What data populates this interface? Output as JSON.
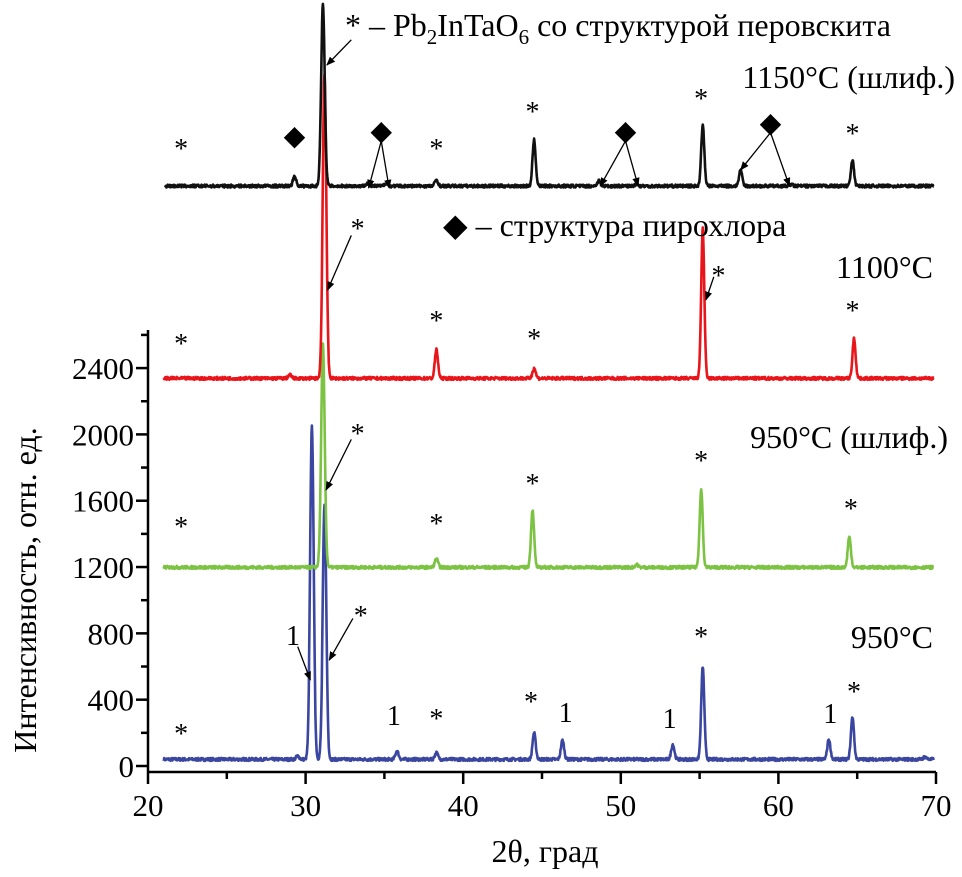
{
  "chart_data": {
    "type": "line",
    "xlabel": "2θ, град",
    "ylabel": "Интенсивность, отн. ед.",
    "xlim": [
      20,
      70
    ],
    "ylim": [
      0,
      2600
    ],
    "xticks": [
      20,
      30,
      40,
      50,
      60,
      70
    ],
    "yticks": [
      0,
      400,
      800,
      1200,
      1600,
      2000,
      2400
    ],
    "grid": false,
    "legend_entries": [
      {
        "symbol": "*",
        "prefix": " – Pb",
        "sub1": "2",
        "mid": "InTaO",
        "sub2": "6",
        "suffix": " со структурой перовскита"
      },
      {
        "symbol": "◆",
        "text": " – структура пирохлора"
      }
    ],
    "series": [
      {
        "name": "950°C",
        "color": "#3a46a0",
        "baseline": 40,
        "peaks": [
          [
            29.5,
            60
          ],
          [
            30.4,
            2045
          ],
          [
            31.2,
            1570
          ],
          [
            35.8,
            90
          ],
          [
            38.3,
            80
          ],
          [
            44.5,
            200
          ],
          [
            46.3,
            155
          ],
          [
            53.3,
            130
          ],
          [
            55.2,
            600
          ],
          [
            63.2,
            160
          ],
          [
            64.7,
            295
          ],
          [
            69.3,
            55
          ]
        ]
      },
      {
        "name": "950°C (шлиф.)",
        "color": "#7cc243",
        "baseline": 1198,
        "peaks": [
          [
            31.1,
            2540
          ],
          [
            38.3,
            1250
          ],
          [
            44.4,
            1545
          ],
          [
            51.0,
            1215
          ],
          [
            55.1,
            1665
          ],
          [
            64.5,
            1380
          ]
        ]
      },
      {
        "name": "1100°C",
        "color": "#e8151b",
        "baseline": 2338,
        "peaks": [
          [
            29.0,
            2360
          ],
          [
            31.2,
            4170
          ],
          [
            38.3,
            2510
          ],
          [
            44.5,
            2400
          ],
          [
            55.2,
            3245
          ],
          [
            64.8,
            2580
          ]
        ]
      },
      {
        "name": "1150°C (шлиф.)",
        "color": "#111111",
        "baseline": 3498,
        "peaks": [
          [
            29.3,
            3560
          ],
          [
            31.1,
            4590
          ],
          [
            33.9,
            3515
          ],
          [
            35.1,
            3515
          ],
          [
            38.3,
            3535
          ],
          [
            44.5,
            3775
          ],
          [
            48.6,
            3530
          ],
          [
            51.0,
            3512
          ],
          [
            55.2,
            3865
          ],
          [
            57.6,
            3595
          ],
          [
            60.8,
            3508
          ],
          [
            64.7,
            3650
          ]
        ]
      }
    ],
    "annotations": [
      {
        "t": "*",
        "x": 22.1,
        "y": 3776
      },
      {
        "t": "◆",
        "x": 29.3,
        "y": 3806
      },
      {
        "t": "◆",
        "x": 34.8,
        "y": 3836
      },
      {
        "t": "*",
        "x": 38.3,
        "y": 3776
      },
      {
        "t": "*",
        "x": 44.4,
        "y": 3999
      },
      {
        "t": "◆",
        "x": 50.3,
        "y": 3836
      },
      {
        "t": "*",
        "x": 55.1,
        "y": 4077
      },
      {
        "t": "◆",
        "x": 59.5,
        "y": 3884
      },
      {
        "t": "*",
        "x": 64.7,
        "y": 3866
      },
      {
        "t": "*",
        "x": 22.1,
        "y": 2600
      },
      {
        "t": "*",
        "x": 33.3,
        "y": 3293
      },
      {
        "t": "*",
        "x": 38.3,
        "y": 2738
      },
      {
        "t": "*",
        "x": 44.5,
        "y": 2630
      },
      {
        "t": "*",
        "x": 56.2,
        "y": 3010
      },
      {
        "t": "*",
        "x": 64.7,
        "y": 2799
      },
      {
        "t": "*",
        "x": 22.1,
        "y": 1496
      },
      {
        "t": "*",
        "x": 33.3,
        "y": 2057
      },
      {
        "t": "*",
        "x": 38.3,
        "y": 1514
      },
      {
        "t": "*",
        "x": 44.4,
        "y": 1755
      },
      {
        "t": "*",
        "x": 55.1,
        "y": 1894
      },
      {
        "t": "*",
        "x": 64.6,
        "y": 1604
      },
      {
        "t": "*",
        "x": 22.1,
        "y": 247
      },
      {
        "t": "1",
        "x": 29.2,
        "y": 790
      },
      {
        "t": "*",
        "x": 33.5,
        "y": 959
      },
      {
        "t": "1",
        "x": 35.6,
        "y": 308
      },
      {
        "t": "*",
        "x": 38.3,
        "y": 338
      },
      {
        "t": "*",
        "x": 44.3,
        "y": 440
      },
      {
        "t": "1",
        "x": 46.5,
        "y": 326
      },
      {
        "t": "1",
        "x": 53.1,
        "y": 290
      },
      {
        "t": "*",
        "x": 55.1,
        "y": 832
      },
      {
        "t": "1",
        "x": 63.3,
        "y": 320
      },
      {
        "t": "*",
        "x": 64.8,
        "y": 501
      }
    ],
    "arrows": [
      {
        "from": [
          32.9,
          4380
        ],
        "to": [
          31.35,
          4228
        ]
      },
      {
        "from": [
          34.8,
          3770
        ],
        "to": [
          34.0,
          3486
        ]
      },
      {
        "from": [
          34.8,
          3770
        ],
        "to": [
          35.3,
          3486
        ]
      },
      {
        "from": [
          50.3,
          3770
        ],
        "to": [
          48.7,
          3498
        ]
      },
      {
        "from": [
          50.3,
          3770
        ],
        "to": [
          51.1,
          3498
        ]
      },
      {
        "from": [
          59.5,
          3820
        ],
        "to": [
          57.6,
          3595
        ]
      },
      {
        "from": [
          59.5,
          3820
        ],
        "to": [
          60.7,
          3498
        ]
      },
      {
        "from": [
          32.9,
          3200
        ],
        "to": [
          31.4,
          2871
        ]
      },
      {
        "from": [
          55.9,
          2950
        ],
        "to": [
          55.4,
          2811
        ]
      },
      {
        "from": [
          32.9,
          1970
        ],
        "to": [
          31.3,
          1665
        ]
      },
      {
        "from": [
          29.5,
          720
        ],
        "to": [
          30.3,
          519
        ]
      },
      {
        "from": [
          33.0,
          890
        ],
        "to": [
          31.5,
          639
        ]
      }
    ]
  }
}
